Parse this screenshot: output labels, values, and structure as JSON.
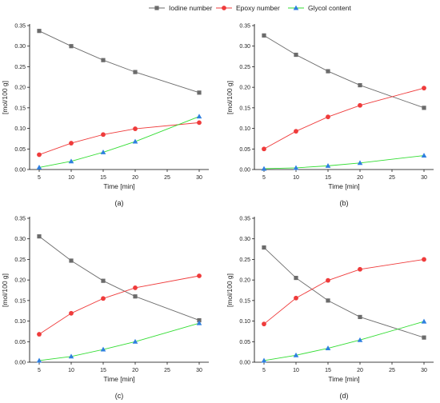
{
  "legend": [
    {
      "series_index": 0
    },
    {
      "series_index": 1
    },
    {
      "series_index": 2
    }
  ],
  "chart_data": [
    {
      "type": "line",
      "panel_label": "(a)",
      "xlabel": "Time [min]",
      "ylabel": "[mol/100 g]",
      "x": [
        5,
        10,
        15,
        20,
        30
      ],
      "xlim": [
        3.5,
        31.5
      ],
      "ylim": [
        0,
        0.35
      ],
      "xticks": [
        "5",
        "10",
        "15",
        "20",
        "25",
        "30"
      ],
      "yticks": [
        "0.00",
        "0.05",
        "0.10",
        "0.15",
        "0.20",
        "0.25",
        "0.30",
        "0.35"
      ],
      "grid": false,
      "legend_position": "top",
      "series": [
        {
          "name": "Iodine number",
          "color": "#6b6b6b",
          "marker": "square",
          "values": [
            0.337,
            0.3,
            0.266,
            0.237,
            0.187
          ]
        },
        {
          "name": "Epoxy number",
          "color": "#ef3b3b",
          "marker": "circle",
          "values": [
            0.036,
            0.064,
            0.085,
            0.099,
            0.114
          ]
        },
        {
          "name": "Glycol content",
          "color": "#2e7fe0",
          "line_color": "#33dd33",
          "marker": "triangle",
          "values": [
            0.005,
            0.02,
            0.042,
            0.068,
            0.129
          ]
        }
      ]
    },
    {
      "type": "line",
      "panel_label": "(b)",
      "xlabel": "Time [min]",
      "ylabel": "[mol/100 g]",
      "x": [
        5,
        10,
        15,
        20,
        30
      ],
      "xlim": [
        3.5,
        31.5
      ],
      "ylim": [
        0,
        0.35
      ],
      "xticks": [
        "5",
        "10",
        "15",
        "20",
        "25",
        "30"
      ],
      "yticks": [
        "0.00",
        "0.05",
        "0.10",
        "0.15",
        "0.20",
        "0.25",
        "0.30",
        "0.35"
      ],
      "grid": false,
      "series": [
        {
          "name": "Iodine number",
          "color": "#6b6b6b",
          "marker": "square",
          "values": [
            0.326,
            0.279,
            0.239,
            0.205,
            0.15
          ]
        },
        {
          "name": "Epoxy number",
          "color": "#ef3b3b",
          "marker": "circle",
          "values": [
            0.05,
            0.093,
            0.128,
            0.156,
            0.198
          ]
        },
        {
          "name": "Glycol content",
          "color": "#2e7fe0",
          "line_color": "#33dd33",
          "marker": "triangle",
          "values": [
            0.002,
            0.004,
            0.009,
            0.016,
            0.034
          ]
        }
      ]
    },
    {
      "type": "line",
      "panel_label": "(c)",
      "xlabel": "Time [min]",
      "ylabel": "[mol/100 g]",
      "x": [
        5,
        10,
        15,
        20,
        30
      ],
      "xlim": [
        3.5,
        31.5
      ],
      "ylim": [
        0,
        0.35
      ],
      "xticks": [
        "5",
        "10",
        "15",
        "20",
        "25",
        "30"
      ],
      "yticks": [
        "0.00",
        "0.05",
        "0.10",
        "0.15",
        "0.20",
        "0.25",
        "0.30",
        "0.35"
      ],
      "grid": false,
      "series": [
        {
          "name": "Iodine number",
          "color": "#6b6b6b",
          "marker": "square",
          "values": [
            0.306,
            0.247,
            0.198,
            0.16,
            0.102
          ]
        },
        {
          "name": "Epoxy number",
          "color": "#ef3b3b",
          "marker": "circle",
          "values": [
            0.068,
            0.119,
            0.155,
            0.181,
            0.21
          ]
        },
        {
          "name": "Glycol content",
          "color": "#2e7fe0",
          "line_color": "#33dd33",
          "marker": "triangle",
          "values": [
            0.004,
            0.014,
            0.031,
            0.05,
            0.095
          ]
        }
      ]
    },
    {
      "type": "line",
      "panel_label": "(d)",
      "xlabel": "Time [min]",
      "ylabel": "[mol/100 g]",
      "x": [
        5,
        10,
        15,
        20,
        30
      ],
      "xlim": [
        3.5,
        31.5
      ],
      "ylim": [
        0,
        0.35
      ],
      "xticks": [
        "5",
        "10",
        "15",
        "20",
        "25",
        "30"
      ],
      "yticks": [
        "0.00",
        "0.05",
        "0.10",
        "0.15",
        "0.20",
        "0.25",
        "0.30",
        "0.35"
      ],
      "grid": false,
      "series": [
        {
          "name": "Iodine number",
          "color": "#6b6b6b",
          "marker": "square",
          "values": [
            0.279,
            0.205,
            0.15,
            0.11,
            0.06
          ]
        },
        {
          "name": "Epoxy number",
          "color": "#ef3b3b",
          "marker": "circle",
          "values": [
            0.093,
            0.156,
            0.199,
            0.226,
            0.25
          ]
        },
        {
          "name": "Glycol content",
          "color": "#2e7fe0",
          "line_color": "#33dd33",
          "marker": "triangle",
          "values": [
            0.004,
            0.017,
            0.034,
            0.054,
            0.099
          ]
        }
      ]
    }
  ]
}
